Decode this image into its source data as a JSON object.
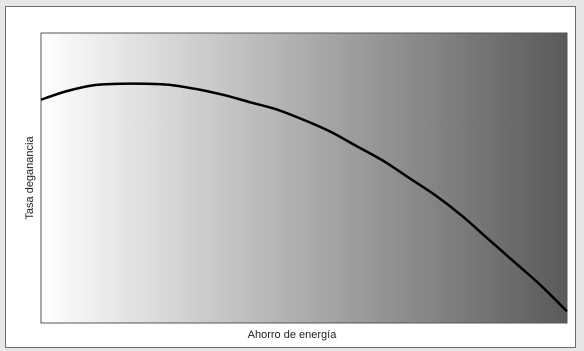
{
  "chart_data": {
    "type": "line",
    "title": "",
    "xlabel": "Ahorro de energía",
    "ylabel": "Tasa deganancia",
    "xlim": [
      0,
      1
    ],
    "ylim": [
      0,
      1
    ],
    "grid": false,
    "background_gradient": [
      "#ffffff",
      "#5a5a5a"
    ],
    "series": [
      {
        "color": "#000000",
        "x": [
          0.0,
          0.05,
          0.1,
          0.15,
          0.2,
          0.25,
          0.3,
          0.35,
          0.4,
          0.45,
          0.5,
          0.55,
          0.6,
          0.65,
          0.7,
          0.75,
          0.8,
          0.85,
          0.9,
          0.95,
          1.0
        ],
        "y": [
          0.77,
          0.8,
          0.82,
          0.825,
          0.825,
          0.82,
          0.805,
          0.785,
          0.76,
          0.735,
          0.7,
          0.66,
          0.61,
          0.56,
          0.5,
          0.44,
          0.37,
          0.29,
          0.21,
          0.13,
          0.04
        ]
      }
    ]
  }
}
